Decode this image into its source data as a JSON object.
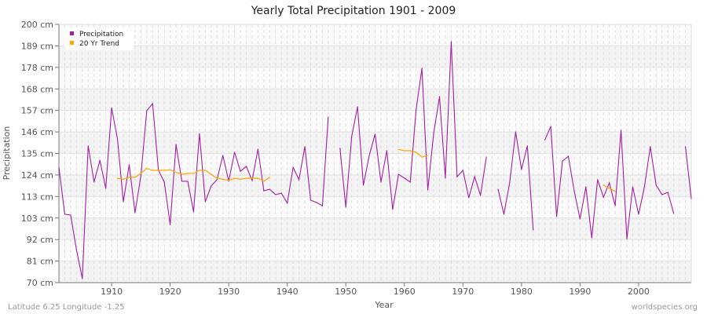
{
  "chart_data": {
    "type": "line",
    "title": "Yearly Total Precipitation 1901 - 2009",
    "xlabel": "Year",
    "ylabel": "Precipitation",
    "xlim": [
      1901,
      2009
    ],
    "ylim": [
      70,
      200
    ],
    "x_ticks": [
      1910,
      1920,
      1930,
      1940,
      1950,
      1960,
      1970,
      1980,
      1990,
      2000
    ],
    "y_ticks": [
      "70 cm",
      "81 cm",
      "92 cm",
      "103 cm",
      "113 cm",
      "124 cm",
      "135 cm",
      "146 cm",
      "157 cm",
      "168 cm",
      "178 cm",
      "189 cm",
      "200 cm"
    ],
    "grid": true,
    "legend_position": "top-left",
    "series": [
      {
        "name": "Precipitation",
        "color": "#a41ea4",
        "points": [
          [
            1901,
            128
          ],
          [
            1902,
            104.4
          ],
          [
            1903,
            104
          ],
          [
            1904,
            86.6
          ],
          [
            1905,
            72
          ],
          [
            1906,
            138.8
          ],
          [
            1907,
            120.6
          ],
          [
            1908,
            131.6
          ],
          [
            1909,
            117.4
          ],
          [
            1910,
            158
          ],
          [
            1911,
            142.3
          ],
          [
            1912,
            110.7
          ],
          [
            1913,
            129.3
          ],
          [
            1914,
            105.2
          ],
          [
            1915,
            123.7
          ],
          [
            1916,
            156.5
          ],
          [
            1917,
            160.1
          ],
          [
            1918,
            126.5
          ],
          [
            1919,
            120.6
          ],
          [
            1920,
            99.2
          ],
          [
            1921,
            139.5
          ],
          [
            1922,
            121
          ],
          [
            1923,
            121
          ],
          [
            1924,
            105.6
          ],
          [
            1925,
            145
          ],
          [
            1926,
            110.7
          ],
          [
            1927,
            118.6
          ],
          [
            1928,
            121.8
          ],
          [
            1929,
            134
          ],
          [
            1930,
            121
          ],
          [
            1931,
            135.6
          ],
          [
            1932,
            126
          ],
          [
            1933,
            128.5
          ],
          [
            1934,
            121.4
          ],
          [
            1935,
            137.2
          ],
          [
            1936,
            116.2
          ],
          [
            1937,
            117
          ],
          [
            1938,
            114.3
          ],
          [
            1939,
            115
          ],
          [
            1940,
            110
          ],
          [
            1941,
            128
          ],
          [
            1942,
            121.8
          ],
          [
            1943,
            138.4
          ],
          [
            1944,
            111.5
          ],
          [
            1945,
            110.3
          ],
          [
            1946,
            108.7
          ],
          [
            1947,
            153.4
          ],
          [
            1948,
            null
          ],
          [
            1949,
            137.6
          ],
          [
            1950,
            108
          ],
          [
            1951,
            143.5
          ],
          [
            1952,
            158.5
          ],
          [
            1953,
            119
          ],
          [
            1954,
            134
          ],
          [
            1955,
            144.7
          ],
          [
            1956,
            120.6
          ],
          [
            1957,
            136.4
          ],
          [
            1958,
            106.8
          ],
          [
            1959,
            124.5
          ],
          [
            1960,
            122.6
          ],
          [
            1961,
            120.6
          ],
          [
            1962,
            157
          ],
          [
            1963,
            177.9
          ],
          [
            1964,
            116.6
          ],
          [
            1965,
            145
          ],
          [
            1966,
            163.6
          ],
          [
            1967,
            122.6
          ],
          [
            1968,
            191.3
          ],
          [
            1969,
            123.3
          ],
          [
            1970,
            126.5
          ],
          [
            1971,
            112.7
          ],
          [
            1972,
            123.3
          ],
          [
            1973,
            113.9
          ],
          [
            1974,
            133.2
          ],
          [
            1975,
            null
          ],
          [
            1976,
            117
          ],
          [
            1977,
            104.4
          ],
          [
            1978,
            120.6
          ],
          [
            1979,
            145.9
          ],
          [
            1980,
            126.9
          ],
          [
            1981,
            138.8
          ],
          [
            1982,
            96.5
          ],
          [
            1983,
            null
          ],
          [
            1984,
            141.9
          ],
          [
            1985,
            148.6
          ],
          [
            1986,
            103.2
          ],
          [
            1987,
            131.2
          ],
          [
            1988,
            133.6
          ],
          [
            1989,
            116.2
          ],
          [
            1990,
            102
          ],
          [
            1991,
            118.2
          ],
          [
            1992,
            92.5
          ],
          [
            1993,
            121.8
          ],
          [
            1994,
            113
          ],
          [
            1995,
            120.2
          ],
          [
            1996,
            108.7
          ],
          [
            1997,
            146.7
          ],
          [
            1998,
            92
          ],
          [
            1999,
            118.2
          ],
          [
            2000,
            104.4
          ],
          [
            2001,
            118.2
          ],
          [
            2002,
            138.4
          ],
          [
            2003,
            119
          ],
          [
            2004,
            114.3
          ],
          [
            2005,
            115.4
          ],
          [
            2006,
            104.8
          ],
          [
            2007,
            null
          ],
          [
            2008,
            138.4
          ],
          [
            2009,
            112.3
          ]
        ]
      },
      {
        "name": "20 Yr Trend",
        "color": "#ffa500",
        "points": [
          [
            1911,
            122.5
          ],
          [
            1912,
            122
          ],
          [
            1913,
            123
          ],
          [
            1914,
            123
          ],
          [
            1915,
            125
          ],
          [
            1916,
            127.5
          ],
          [
            1917,
            126.5
          ],
          [
            1918,
            126.5
          ],
          [
            1919,
            126.5
          ],
          [
            1920,
            126.8
          ],
          [
            1921,
            125.5
          ],
          [
            1922,
            124.5
          ],
          [
            1923,
            125
          ],
          [
            1924,
            125
          ],
          [
            1925,
            126.5
          ],
          [
            1926,
            126.5
          ],
          [
            1927,
            124.5
          ],
          [
            1928,
            122.5
          ],
          [
            1929,
            122
          ],
          [
            1930,
            121.5
          ],
          [
            1931,
            122.5
          ],
          [
            1932,
            122
          ],
          [
            1933,
            122.5
          ],
          [
            1934,
            122.5
          ],
          [
            1935,
            122.5
          ],
          [
            1936,
            121
          ],
          [
            1937,
            123
          ],
          [
            1938,
            null
          ],
          [
            1959,
            137
          ],
          [
            1960,
            136.4
          ],
          [
            1961,
            136.4
          ],
          [
            1962,
            135.6
          ],
          [
            1963,
            133.2
          ],
          [
            1964,
            134
          ],
          [
            1965,
            null
          ],
          [
            1994,
            119.1
          ],
          [
            1995,
            117.5
          ],
          [
            1996,
            115.9
          ]
        ]
      }
    ]
  },
  "footer": {
    "location": "Latitude 6.25 Longitude -1.25",
    "site": "worldspecies.org"
  }
}
